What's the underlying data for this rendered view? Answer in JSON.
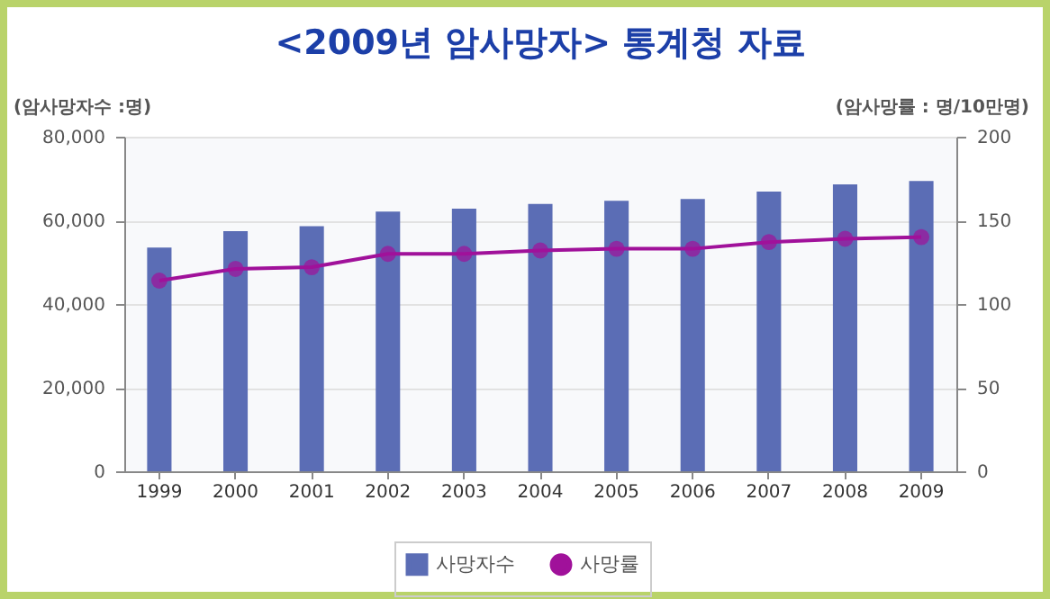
{
  "chart_data": {
    "type": "bar",
    "title": "<2009년 암사망자> 통계청 자료",
    "ylabel": "(암사망자수 :명)",
    "y2label": "(암사망률 : 명/10만명)",
    "categories": [
      "1999",
      "2000",
      "2001",
      "2002",
      "2003",
      "2004",
      "2005",
      "2006",
      "2007",
      "2008",
      "2009"
    ],
    "series": [
      {
        "name": "사망자수",
        "color": "#5b6db5",
        "values": [
          53500,
          57400,
          58600,
          62100,
          62800,
          63900,
          64700,
          65100,
          66900,
          68600,
          69400
        ]
      },
      {
        "name": "사망률",
        "type": "line",
        "axis": "y2",
        "color": "#a0119a",
        "values": [
          114,
          121,
          122,
          130,
          130,
          132,
          133,
          133,
          137,
          139,
          140
        ]
      }
    ],
    "ylim": [
      0,
      80000
    ],
    "yticks": [
      {
        "value": 0,
        "label": "0"
      },
      {
        "value": 20000,
        "label": "20,000"
      },
      {
        "value": 40000,
        "label": "40,000"
      },
      {
        "value": 60000,
        "label": "60,000"
      },
      {
        "value": 80000,
        "label": "80,000"
      }
    ],
    "y2lim": [
      0,
      200
    ],
    "y2ticks": [
      0,
      50,
      100,
      150,
      200
    ],
    "grid": "y",
    "legend": "bottom",
    "marker": "circle",
    "line_style": "solid"
  }
}
